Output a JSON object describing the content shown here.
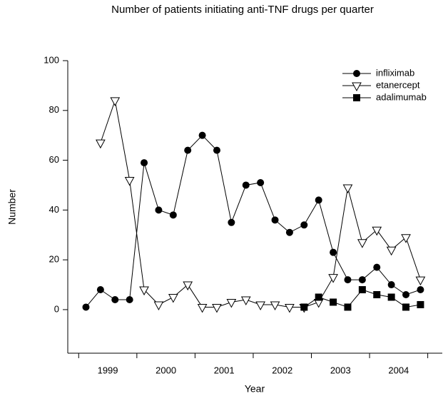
{
  "chart_data": {
    "type": "line",
    "title": "Number of patients initiating anti-TNF drugs per quarter",
    "xlabel": "Year",
    "ylabel": "Number",
    "x": [
      1,
      2,
      3,
      4,
      5,
      6,
      7,
      8,
      9,
      10,
      11,
      12,
      13,
      14,
      15,
      16,
      17,
      18,
      19,
      20,
      21,
      22,
      23,
      24
    ],
    "series": [
      {
        "name": "infliximab",
        "color": "#000000",
        "marker": "circle",
        "values": [
          1,
          8,
          4,
          4,
          59,
          40,
          38,
          64,
          70,
          64,
          35,
          50,
          51,
          36,
          31,
          34,
          44,
          23,
          12,
          12,
          17,
          10,
          6,
          8
        ]
      },
      {
        "name": "etanercept",
        "color": "#000000",
        "marker": "triangle-down",
        "values": [
          null,
          67,
          84,
          52,
          8,
          2,
          5,
          10,
          1,
          1,
          3,
          4,
          2,
          2,
          1,
          1,
          3,
          13,
          49,
          27,
          32,
          24,
          29,
          12
        ]
      },
      {
        "name": "adalimumab",
        "color": "#000000",
        "marker": "square",
        "values": [
          null,
          null,
          null,
          null,
          null,
          null,
          null,
          null,
          null,
          null,
          null,
          null,
          null,
          null,
          null,
          1,
          5,
          3,
          1,
          8,
          6,
          5,
          1,
          2
        ]
      }
    ],
    "xlim": [
      -0.25,
      25.5
    ],
    "xticks": [
      {
        "value": 2.5,
        "label": "1999"
      },
      {
        "value": 6.5,
        "label": "2000"
      },
      {
        "value": 10.5,
        "label": "2001"
      },
      {
        "value": 14.5,
        "label": "2002"
      },
      {
        "value": 18.5,
        "label": "2003"
      },
      {
        "value": 22.5,
        "label": "2004"
      }
    ],
    "xminor_ticks": [
      0.5,
      4.5,
      8.5,
      12.5,
      16.5,
      20.5,
      24.5
    ],
    "ylim": [
      -17.5,
      100
    ],
    "yticks": [
      0,
      20,
      40,
      60,
      80,
      100
    ],
    "grid": false,
    "legend": "upper right"
  }
}
